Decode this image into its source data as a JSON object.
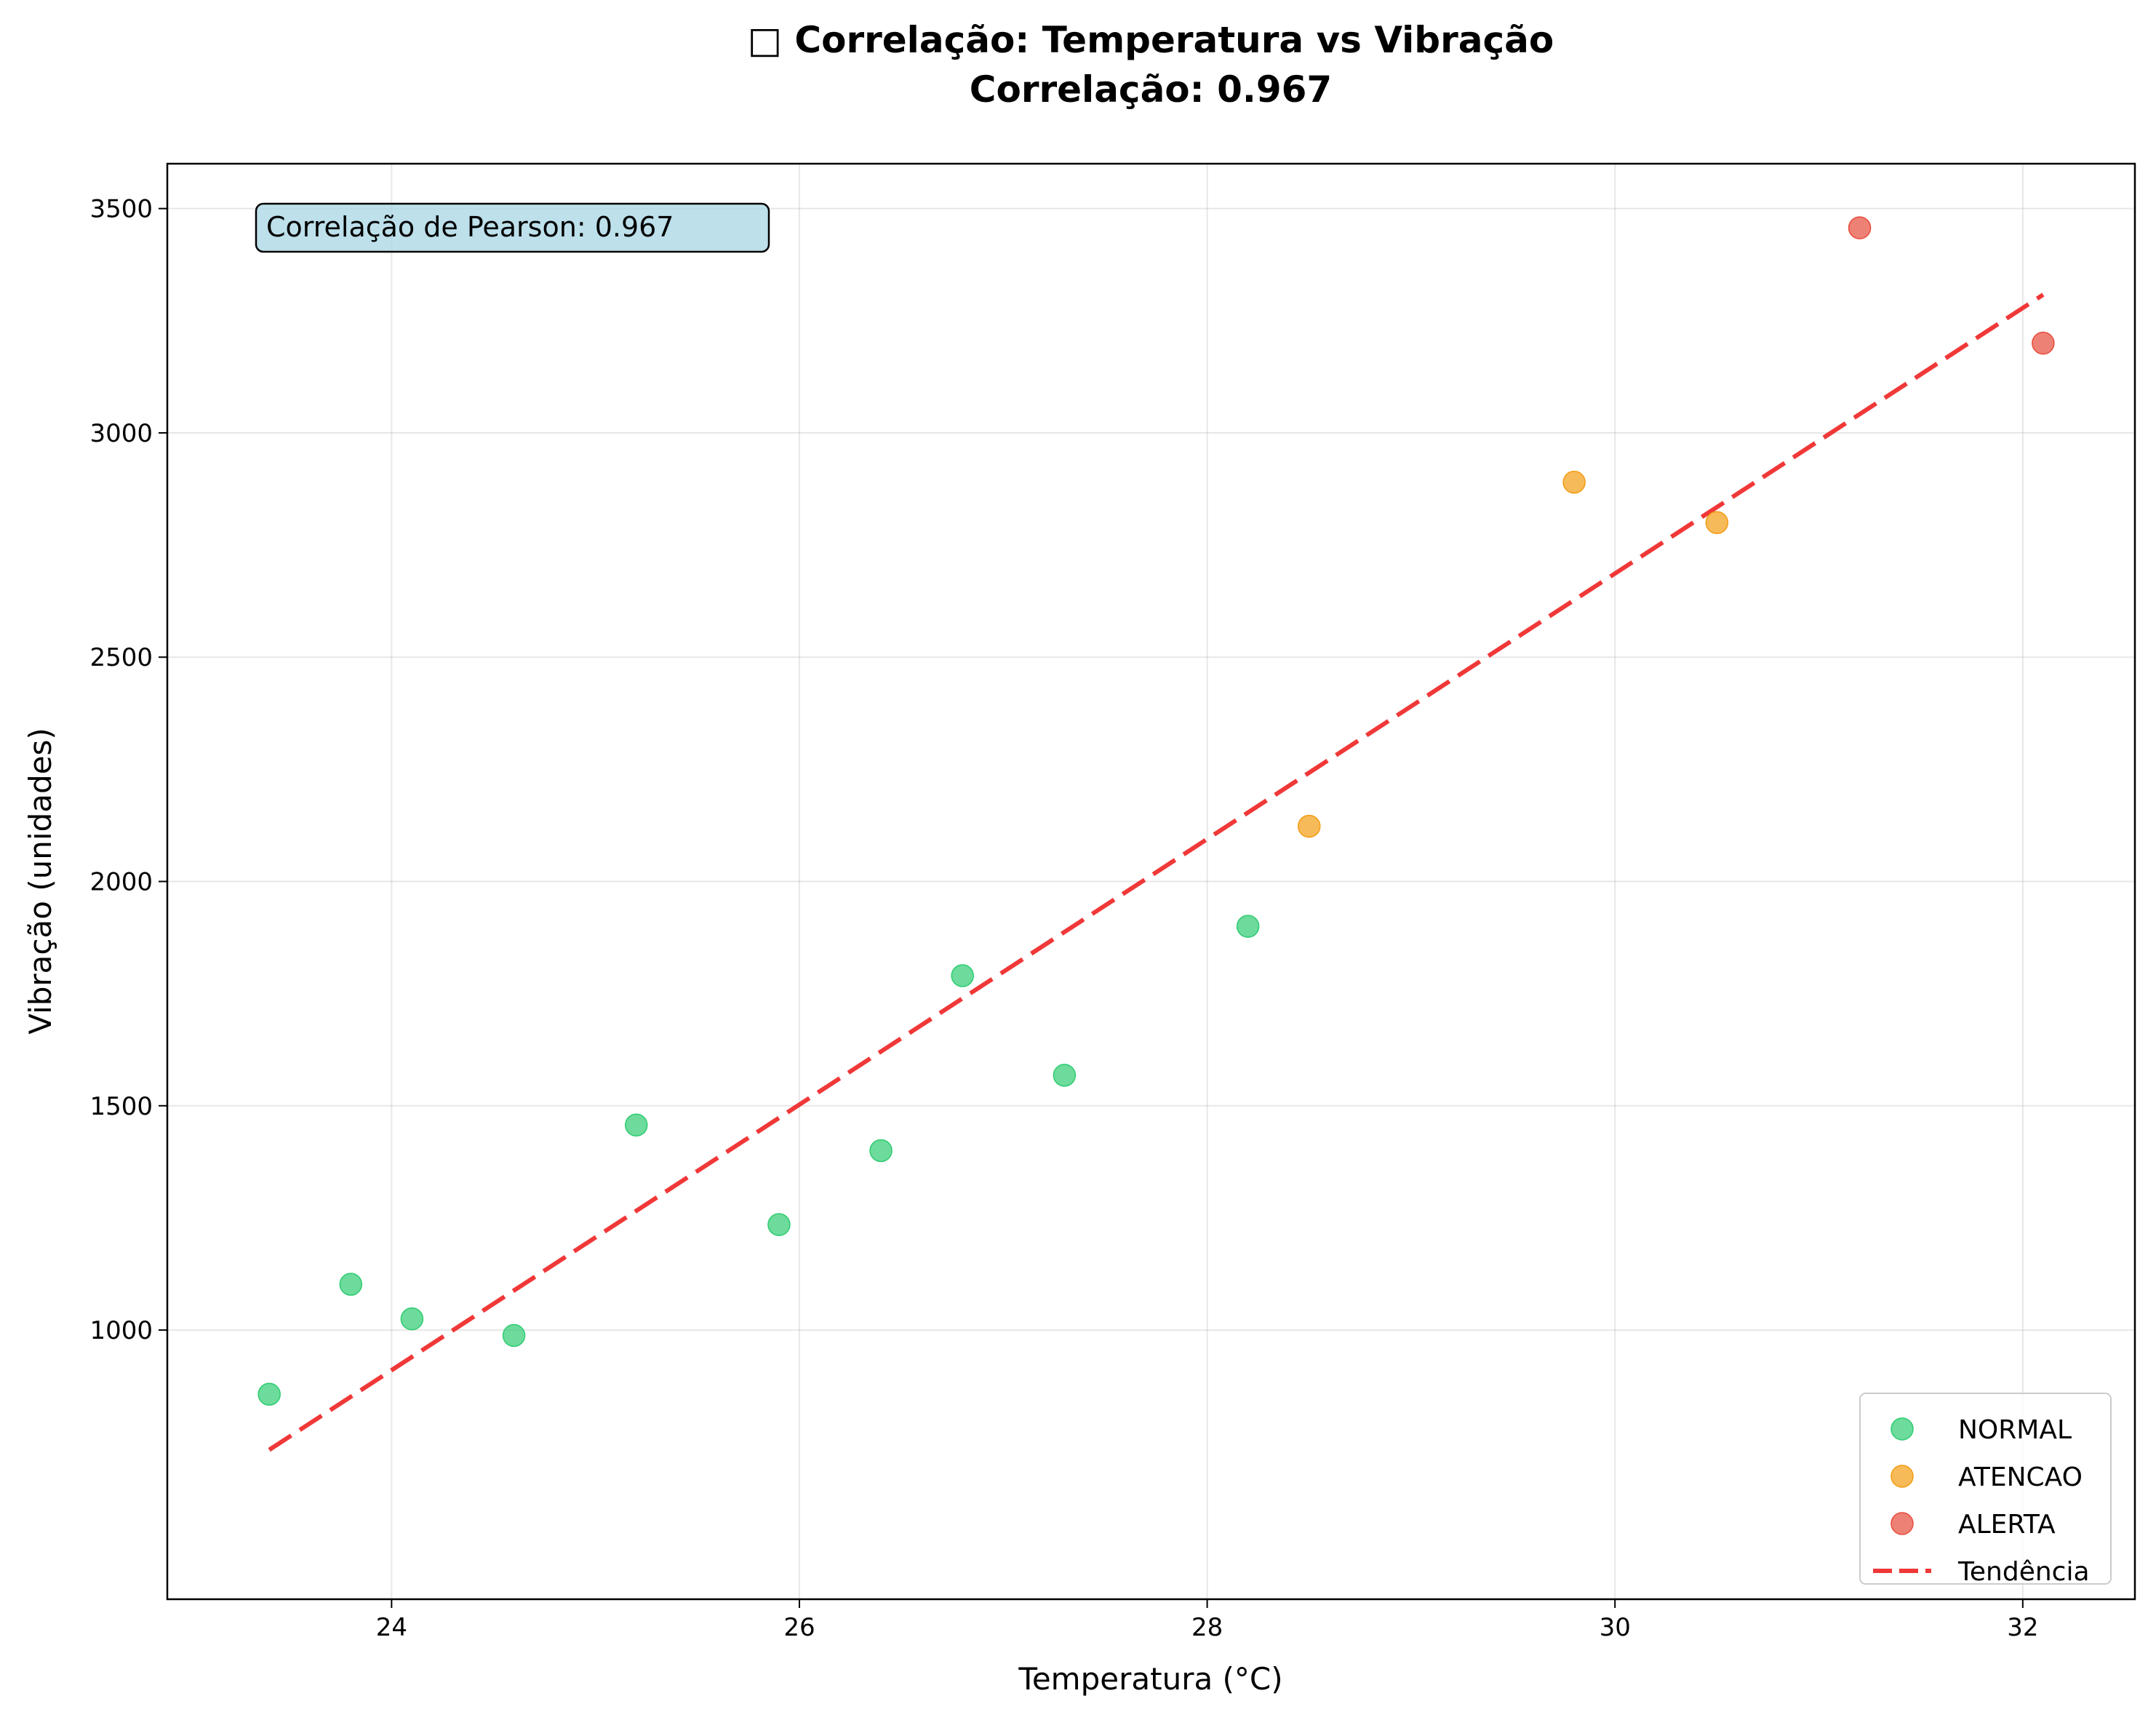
{
  "chart_data": {
    "type": "scatter",
    "title_line1": "□ Correlação: Temperatura vs Vibração",
    "title_line2": "Correlação: 0.967",
    "xlabel": "Temperatura (°C)",
    "ylabel": "Vibração (unidades)",
    "xlim": [
      22.9,
      32.55
    ],
    "ylim": [
      400,
      3600
    ],
    "xticks": [
      24,
      26,
      28,
      30,
      32
    ],
    "yticks": [
      1000,
      1500,
      2000,
      2500,
      3000,
      3500
    ],
    "grid": true,
    "legend_position": "lower-right",
    "annotation": "Correlação de Pearson: 0.967",
    "series": [
      {
        "name": "NORMAL",
        "color": "#2ecc71",
        "points": [
          {
            "x": 23.4,
            "y": 857
          },
          {
            "x": 23.8,
            "y": 1102
          },
          {
            "x": 24.1,
            "y": 1025
          },
          {
            "x": 24.6,
            "y": 988
          },
          {
            "x": 25.2,
            "y": 1457
          },
          {
            "x": 25.9,
            "y": 1235
          },
          {
            "x": 26.4,
            "y": 1400
          },
          {
            "x": 26.8,
            "y": 1790
          },
          {
            "x": 27.3,
            "y": 1568
          },
          {
            "x": 28.2,
            "y": 1900
          }
        ]
      },
      {
        "name": "ATENCAO",
        "color": "#f39c12",
        "points": [
          {
            "x": 28.5,
            "y": 2123
          },
          {
            "x": 29.8,
            "y": 2890
          },
          {
            "x": 30.5,
            "y": 2800
          }
        ]
      },
      {
        "name": "ALERTA",
        "color": "#e74c3c",
        "points": [
          {
            "x": 31.2,
            "y": 3457
          },
          {
            "x": 32.1,
            "y": 3200
          }
        ]
      }
    ],
    "trend": {
      "name": "Tendência",
      "color": "#ee2222",
      "x": [
        23.4,
        32.1
      ],
      "y": [
        733,
        3308
      ]
    }
  }
}
